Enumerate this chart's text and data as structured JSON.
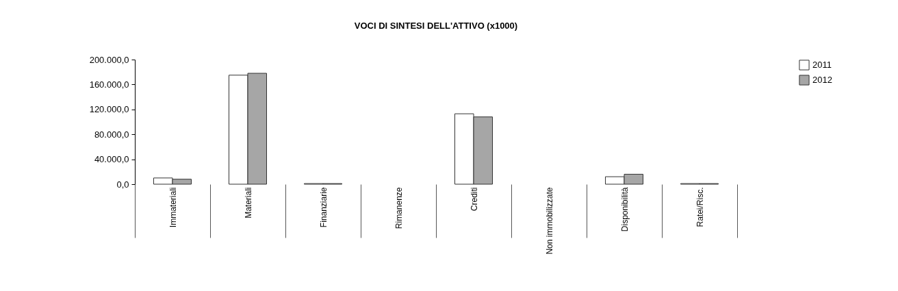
{
  "chart_data": {
    "type": "bar",
    "title": "VOCI DI SINTESI DELL'ATTIVO (x1000)",
    "categories": [
      "Immateriali",
      "Materiali",
      "Finanziarie",
      "Rimanenze",
      "Crediti",
      "Non immobilizzate",
      "Disponibilità",
      "Ratei/Risc."
    ],
    "series": [
      {
        "name": "2011",
        "color": "#ffffff",
        "values": [
          10000,
          175000,
          1000,
          0,
          113000,
          0,
          12000,
          1000
        ]
      },
      {
        "name": "2012",
        "color": "#a6a6a6",
        "values": [
          8000,
          178000,
          1000,
          0,
          108000,
          0,
          16000,
          1000
        ]
      }
    ],
    "ylim": [
      0,
      200000
    ],
    "yticks": [
      {
        "value": 0,
        "label": "0,0"
      },
      {
        "value": 40000,
        "label": "40.000,0"
      },
      {
        "value": 80000,
        "label": "80.000,0"
      },
      {
        "value": 120000,
        "label": "120.000,0"
      },
      {
        "value": 160000,
        "label": "160.000,0"
      },
      {
        "value": 200000,
        "label": "200.000,0"
      }
    ],
    "grid": false,
    "legend": "right"
  }
}
